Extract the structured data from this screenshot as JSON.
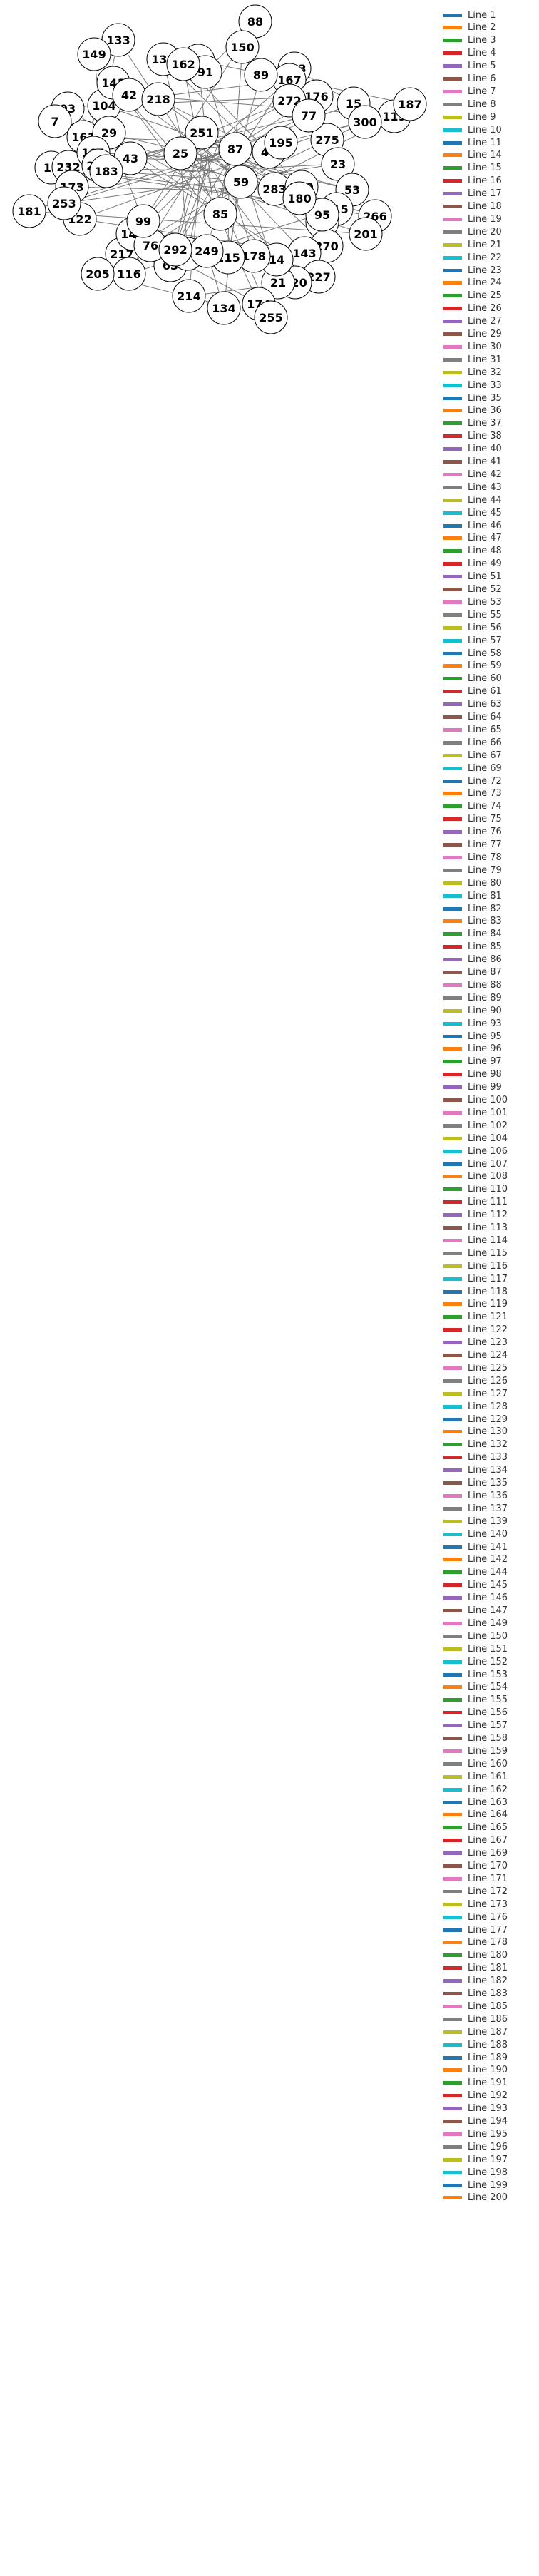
{
  "graph": {
    "nodes": [
      {
        "label": "88"
      },
      {
        "label": "133"
      },
      {
        "label": "150"
      },
      {
        "label": "149"
      },
      {
        "label": "193"
      },
      {
        "label": "138"
      },
      {
        "label": "212"
      },
      {
        "label": "91"
      },
      {
        "label": "167"
      },
      {
        "label": "89"
      },
      {
        "label": "176"
      },
      {
        "label": "15"
      },
      {
        "label": "119"
      },
      {
        "label": "187"
      },
      {
        "label": "300"
      },
      {
        "label": "93"
      },
      {
        "label": "7"
      },
      {
        "label": "104"
      },
      {
        "label": "141"
      },
      {
        "label": "42"
      },
      {
        "label": "272"
      },
      {
        "label": "275"
      },
      {
        "label": "23"
      },
      {
        "label": "53"
      },
      {
        "label": "13"
      },
      {
        "label": "232"
      },
      {
        "label": "181"
      },
      {
        "label": "173"
      },
      {
        "label": "122"
      },
      {
        "label": "253"
      },
      {
        "label": "115"
      },
      {
        "label": "266"
      },
      {
        "label": "200"
      },
      {
        "label": "201"
      },
      {
        "label": "270"
      },
      {
        "label": "143"
      },
      {
        "label": "217"
      },
      {
        "label": "116"
      },
      {
        "label": "205"
      },
      {
        "label": "227"
      },
      {
        "label": "120"
      },
      {
        "label": "21"
      },
      {
        "label": "14"
      },
      {
        "label": "178"
      },
      {
        "label": "174"
      },
      {
        "label": "255"
      },
      {
        "label": "134"
      },
      {
        "label": "214"
      },
      {
        "label": "215"
      },
      {
        "label": "144"
      },
      {
        "label": "63"
      },
      {
        "label": "76"
      },
      {
        "label": "229"
      },
      {
        "label": "249"
      },
      {
        "label": "292"
      },
      {
        "label": "59"
      },
      {
        "label": "44"
      },
      {
        "label": "251"
      },
      {
        "label": "283"
      },
      {
        "label": "25"
      },
      {
        "label": "85"
      },
      {
        "label": "87"
      },
      {
        "label": "280"
      },
      {
        "label": "195"
      },
      {
        "label": "77"
      },
      {
        "label": "161"
      },
      {
        "label": "29"
      },
      {
        "label": "43"
      },
      {
        "label": "218"
      },
      {
        "label": "162"
      },
      {
        "label": "101"
      },
      {
        "label": "216"
      },
      {
        "label": "183"
      },
      {
        "label": "99"
      },
      {
        "label": "95"
      },
      {
        "label": "180"
      }
    ],
    "edges_color": "#777777"
  },
  "legend": {
    "items": [
      {
        "label": "Line 1",
        "color": "#1f77b4"
      },
      {
        "label": "Line 2",
        "color": "#ff7f0e"
      },
      {
        "label": "Line 3",
        "color": "#2ca02c"
      },
      {
        "label": "Line 4",
        "color": "#d62728"
      },
      {
        "label": "Line 5",
        "color": "#9467bd"
      },
      {
        "label": "Line 6",
        "color": "#8c564b"
      },
      {
        "label": "Line 7",
        "color": "#e377c2"
      },
      {
        "label": "Line 8",
        "color": "#7f7f7f"
      },
      {
        "label": "Line 9",
        "color": "#bcbd22"
      },
      {
        "label": "Line 10",
        "color": "#17becf"
      },
      {
        "label": "Line 11",
        "color": "#1f77b4"
      },
      {
        "label": "Line 14",
        "color": "#ff7f0e"
      },
      {
        "label": "Line 15",
        "color": "#2ca02c"
      },
      {
        "label": "Line 16",
        "color": "#d62728"
      },
      {
        "label": "Line 17",
        "color": "#9467bd"
      },
      {
        "label": "Line 18",
        "color": "#8c564b"
      },
      {
        "label": "Line 19",
        "color": "#e377c2"
      },
      {
        "label": "Line 20",
        "color": "#7f7f7f"
      },
      {
        "label": "Line 21",
        "color": "#bcbd22"
      },
      {
        "label": "Line 22",
        "color": "#17becf"
      },
      {
        "label": "Line 23",
        "color": "#1f77b4"
      },
      {
        "label": "Line 24",
        "color": "#ff7f0e"
      },
      {
        "label": "Line 25",
        "color": "#2ca02c"
      },
      {
        "label": "Line 26",
        "color": "#d62728"
      },
      {
        "label": "Line 27",
        "color": "#9467bd"
      },
      {
        "label": "Line 29",
        "color": "#8c564b"
      },
      {
        "label": "Line 30",
        "color": "#e377c2"
      },
      {
        "label": "Line 31",
        "color": "#7f7f7f"
      },
      {
        "label": "Line 32",
        "color": "#bcbd22"
      },
      {
        "label": "Line 33",
        "color": "#17becf"
      },
      {
        "label": "Line 35",
        "color": "#1f77b4"
      },
      {
        "label": "Line 36",
        "color": "#ff7f0e"
      },
      {
        "label": "Line 37",
        "color": "#2ca02c"
      },
      {
        "label": "Line 38",
        "color": "#d62728"
      },
      {
        "label": "Line 40",
        "color": "#9467bd"
      },
      {
        "label": "Line 41",
        "color": "#8c564b"
      },
      {
        "label": "Line 42",
        "color": "#e377c2"
      },
      {
        "label": "Line 43",
        "color": "#7f7f7f"
      },
      {
        "label": "Line 44",
        "color": "#bcbd22"
      },
      {
        "label": "Line 45",
        "color": "#17becf"
      },
      {
        "label": "Line 46",
        "color": "#1f77b4"
      },
      {
        "label": "Line 47",
        "color": "#ff7f0e"
      },
      {
        "label": "Line 48",
        "color": "#2ca02c"
      },
      {
        "label": "Line 49",
        "color": "#d62728"
      },
      {
        "label": "Line 51",
        "color": "#9467bd"
      },
      {
        "label": "Line 52",
        "color": "#8c564b"
      },
      {
        "label": "Line 53",
        "color": "#e377c2"
      },
      {
        "label": "Line 55",
        "color": "#7f7f7f"
      },
      {
        "label": "Line 56",
        "color": "#bcbd22"
      },
      {
        "label": "Line 57",
        "color": "#17becf"
      },
      {
        "label": "Line 58",
        "color": "#1f77b4"
      },
      {
        "label": "Line 59",
        "color": "#ff7f0e"
      },
      {
        "label": "Line 60",
        "color": "#2ca02c"
      },
      {
        "label": "Line 61",
        "color": "#d62728"
      },
      {
        "label": "Line 63",
        "color": "#9467bd"
      },
      {
        "label": "Line 64",
        "color": "#8c564b"
      },
      {
        "label": "Line 65",
        "color": "#e377c2"
      },
      {
        "label": "Line 66",
        "color": "#7f7f7f"
      },
      {
        "label": "Line 67",
        "color": "#bcbd22"
      },
      {
        "label": "Line 69",
        "color": "#17becf"
      },
      {
        "label": "Line 72",
        "color": "#1f77b4"
      },
      {
        "label": "Line 73",
        "color": "#ff7f0e"
      },
      {
        "label": "Line 74",
        "color": "#2ca02c"
      },
      {
        "label": "Line 75",
        "color": "#d62728"
      },
      {
        "label": "Line 76",
        "color": "#9467bd"
      },
      {
        "label": "Line 77",
        "color": "#8c564b"
      },
      {
        "label": "Line 78",
        "color": "#e377c2"
      },
      {
        "label": "Line 79",
        "color": "#7f7f7f"
      },
      {
        "label": "Line 80",
        "color": "#bcbd22"
      },
      {
        "label": "Line 81",
        "color": "#17becf"
      },
      {
        "label": "Line 82",
        "color": "#1f77b4"
      },
      {
        "label": "Line 83",
        "color": "#ff7f0e"
      },
      {
        "label": "Line 84",
        "color": "#2ca02c"
      },
      {
        "label": "Line 85",
        "color": "#d62728"
      },
      {
        "label": "Line 86",
        "color": "#9467bd"
      },
      {
        "label": "Line 87",
        "color": "#8c564b"
      },
      {
        "label": "Line 88",
        "color": "#e377c2"
      },
      {
        "label": "Line 89",
        "color": "#7f7f7f"
      },
      {
        "label": "Line 90",
        "color": "#bcbd22"
      },
      {
        "label": "Line 93",
        "color": "#17becf"
      },
      {
        "label": "Line 95",
        "color": "#1f77b4"
      },
      {
        "label": "Line 96",
        "color": "#ff7f0e"
      },
      {
        "label": "Line 97",
        "color": "#2ca02c"
      },
      {
        "label": "Line 98",
        "color": "#d62728"
      },
      {
        "label": "Line 99",
        "color": "#9467bd"
      },
      {
        "label": "Line 100",
        "color": "#8c564b"
      },
      {
        "label": "Line 101",
        "color": "#e377c2"
      },
      {
        "label": "Line 102",
        "color": "#7f7f7f"
      },
      {
        "label": "Line 104",
        "color": "#bcbd22"
      },
      {
        "label": "Line 106",
        "color": "#17becf"
      },
      {
        "label": "Line 107",
        "color": "#1f77b4"
      },
      {
        "label": "Line 108",
        "color": "#ff7f0e"
      },
      {
        "label": "Line 110",
        "color": "#2ca02c"
      },
      {
        "label": "Line 111",
        "color": "#d62728"
      },
      {
        "label": "Line 112",
        "color": "#9467bd"
      },
      {
        "label": "Line 113",
        "color": "#8c564b"
      },
      {
        "label": "Line 114",
        "color": "#e377c2"
      },
      {
        "label": "Line 115",
        "color": "#7f7f7f"
      },
      {
        "label": "Line 116",
        "color": "#bcbd22"
      },
      {
        "label": "Line 117",
        "color": "#17becf"
      },
      {
        "label": "Line 118",
        "color": "#1f77b4"
      },
      {
        "label": "Line 119",
        "color": "#ff7f0e"
      },
      {
        "label": "Line 121",
        "color": "#2ca02c"
      },
      {
        "label": "Line 122",
        "color": "#d62728"
      },
      {
        "label": "Line 123",
        "color": "#9467bd"
      },
      {
        "label": "Line 124",
        "color": "#8c564b"
      },
      {
        "label": "Line 125",
        "color": "#e377c2"
      },
      {
        "label": "Line 126",
        "color": "#7f7f7f"
      },
      {
        "label": "Line 127",
        "color": "#bcbd22"
      },
      {
        "label": "Line 128",
        "color": "#17becf"
      },
      {
        "label": "Line 129",
        "color": "#1f77b4"
      },
      {
        "label": "Line 130",
        "color": "#ff7f0e"
      },
      {
        "label": "Line 132",
        "color": "#2ca02c"
      },
      {
        "label": "Line 133",
        "color": "#d62728"
      },
      {
        "label": "Line 134",
        "color": "#9467bd"
      },
      {
        "label": "Line 135",
        "color": "#8c564b"
      },
      {
        "label": "Line 136",
        "color": "#e377c2"
      },
      {
        "label": "Line 137",
        "color": "#7f7f7f"
      },
      {
        "label": "Line 139",
        "color": "#bcbd22"
      },
      {
        "label": "Line 140",
        "color": "#17becf"
      },
      {
        "label": "Line 141",
        "color": "#1f77b4"
      },
      {
        "label": "Line 142",
        "color": "#ff7f0e"
      },
      {
        "label": "Line 144",
        "color": "#2ca02c"
      },
      {
        "label": "Line 145",
        "color": "#d62728"
      },
      {
        "label": "Line 146",
        "color": "#9467bd"
      },
      {
        "label": "Line 147",
        "color": "#8c564b"
      },
      {
        "label": "Line 149",
        "color": "#e377c2"
      },
      {
        "label": "Line 150",
        "color": "#7f7f7f"
      },
      {
        "label": "Line 151",
        "color": "#bcbd22"
      },
      {
        "label": "Line 152",
        "color": "#17becf"
      },
      {
        "label": "Line 153",
        "color": "#1f77b4"
      },
      {
        "label": "Line 154",
        "color": "#ff7f0e"
      },
      {
        "label": "Line 155",
        "color": "#2ca02c"
      },
      {
        "label": "Line 156",
        "color": "#d62728"
      },
      {
        "label": "Line 157",
        "color": "#9467bd"
      },
      {
        "label": "Line 158",
        "color": "#8c564b"
      },
      {
        "label": "Line 159",
        "color": "#e377c2"
      },
      {
        "label": "Line 160",
        "color": "#7f7f7f"
      },
      {
        "label": "Line 161",
        "color": "#bcbd22"
      },
      {
        "label": "Line 162",
        "color": "#17becf"
      },
      {
        "label": "Line 163",
        "color": "#1f77b4"
      },
      {
        "label": "Line 164",
        "color": "#ff7f0e"
      },
      {
        "label": "Line 165",
        "color": "#2ca02c"
      },
      {
        "label": "Line 167",
        "color": "#d62728"
      },
      {
        "label": "Line 169",
        "color": "#9467bd"
      },
      {
        "label": "Line 170",
        "color": "#8c564b"
      },
      {
        "label": "Line 171",
        "color": "#e377c2"
      },
      {
        "label": "Line 172",
        "color": "#7f7f7f"
      },
      {
        "label": "Line 173",
        "color": "#bcbd22"
      },
      {
        "label": "Line 176",
        "color": "#17becf"
      },
      {
        "label": "Line 177",
        "color": "#1f77b4"
      },
      {
        "label": "Line 178",
        "color": "#ff7f0e"
      },
      {
        "label": "Line 180",
        "color": "#2ca02c"
      },
      {
        "label": "Line 181",
        "color": "#d62728"
      },
      {
        "label": "Line 182",
        "color": "#9467bd"
      },
      {
        "label": "Line 183",
        "color": "#8c564b"
      },
      {
        "label": "Line 185",
        "color": "#e377c2"
      },
      {
        "label": "Line 186",
        "color": "#7f7f7f"
      },
      {
        "label": "Line 187",
        "color": "#bcbd22"
      },
      {
        "label": "Line 188",
        "color": "#17becf"
      },
      {
        "label": "Line 189",
        "color": "#1f77b4"
      },
      {
        "label": "Line 190",
        "color": "#ff7f0e"
      },
      {
        "label": "Line 191",
        "color": "#2ca02c"
      },
      {
        "label": "Line 192",
        "color": "#d62728"
      },
      {
        "label": "Line 193",
        "color": "#9467bd"
      },
      {
        "label": "Line 194",
        "color": "#8c564b"
      },
      {
        "label": "Line 195",
        "color": "#e377c2"
      },
      {
        "label": "Line 196",
        "color": "#7f7f7f"
      },
      {
        "label": "Line 197",
        "color": "#bcbd22"
      },
      {
        "label": "Line 198",
        "color": "#17becf"
      },
      {
        "label": "Line 199",
        "color": "#1f77b4"
      },
      {
        "label": "Line 200",
        "color": "#ff7f0e"
      }
    ]
  }
}
